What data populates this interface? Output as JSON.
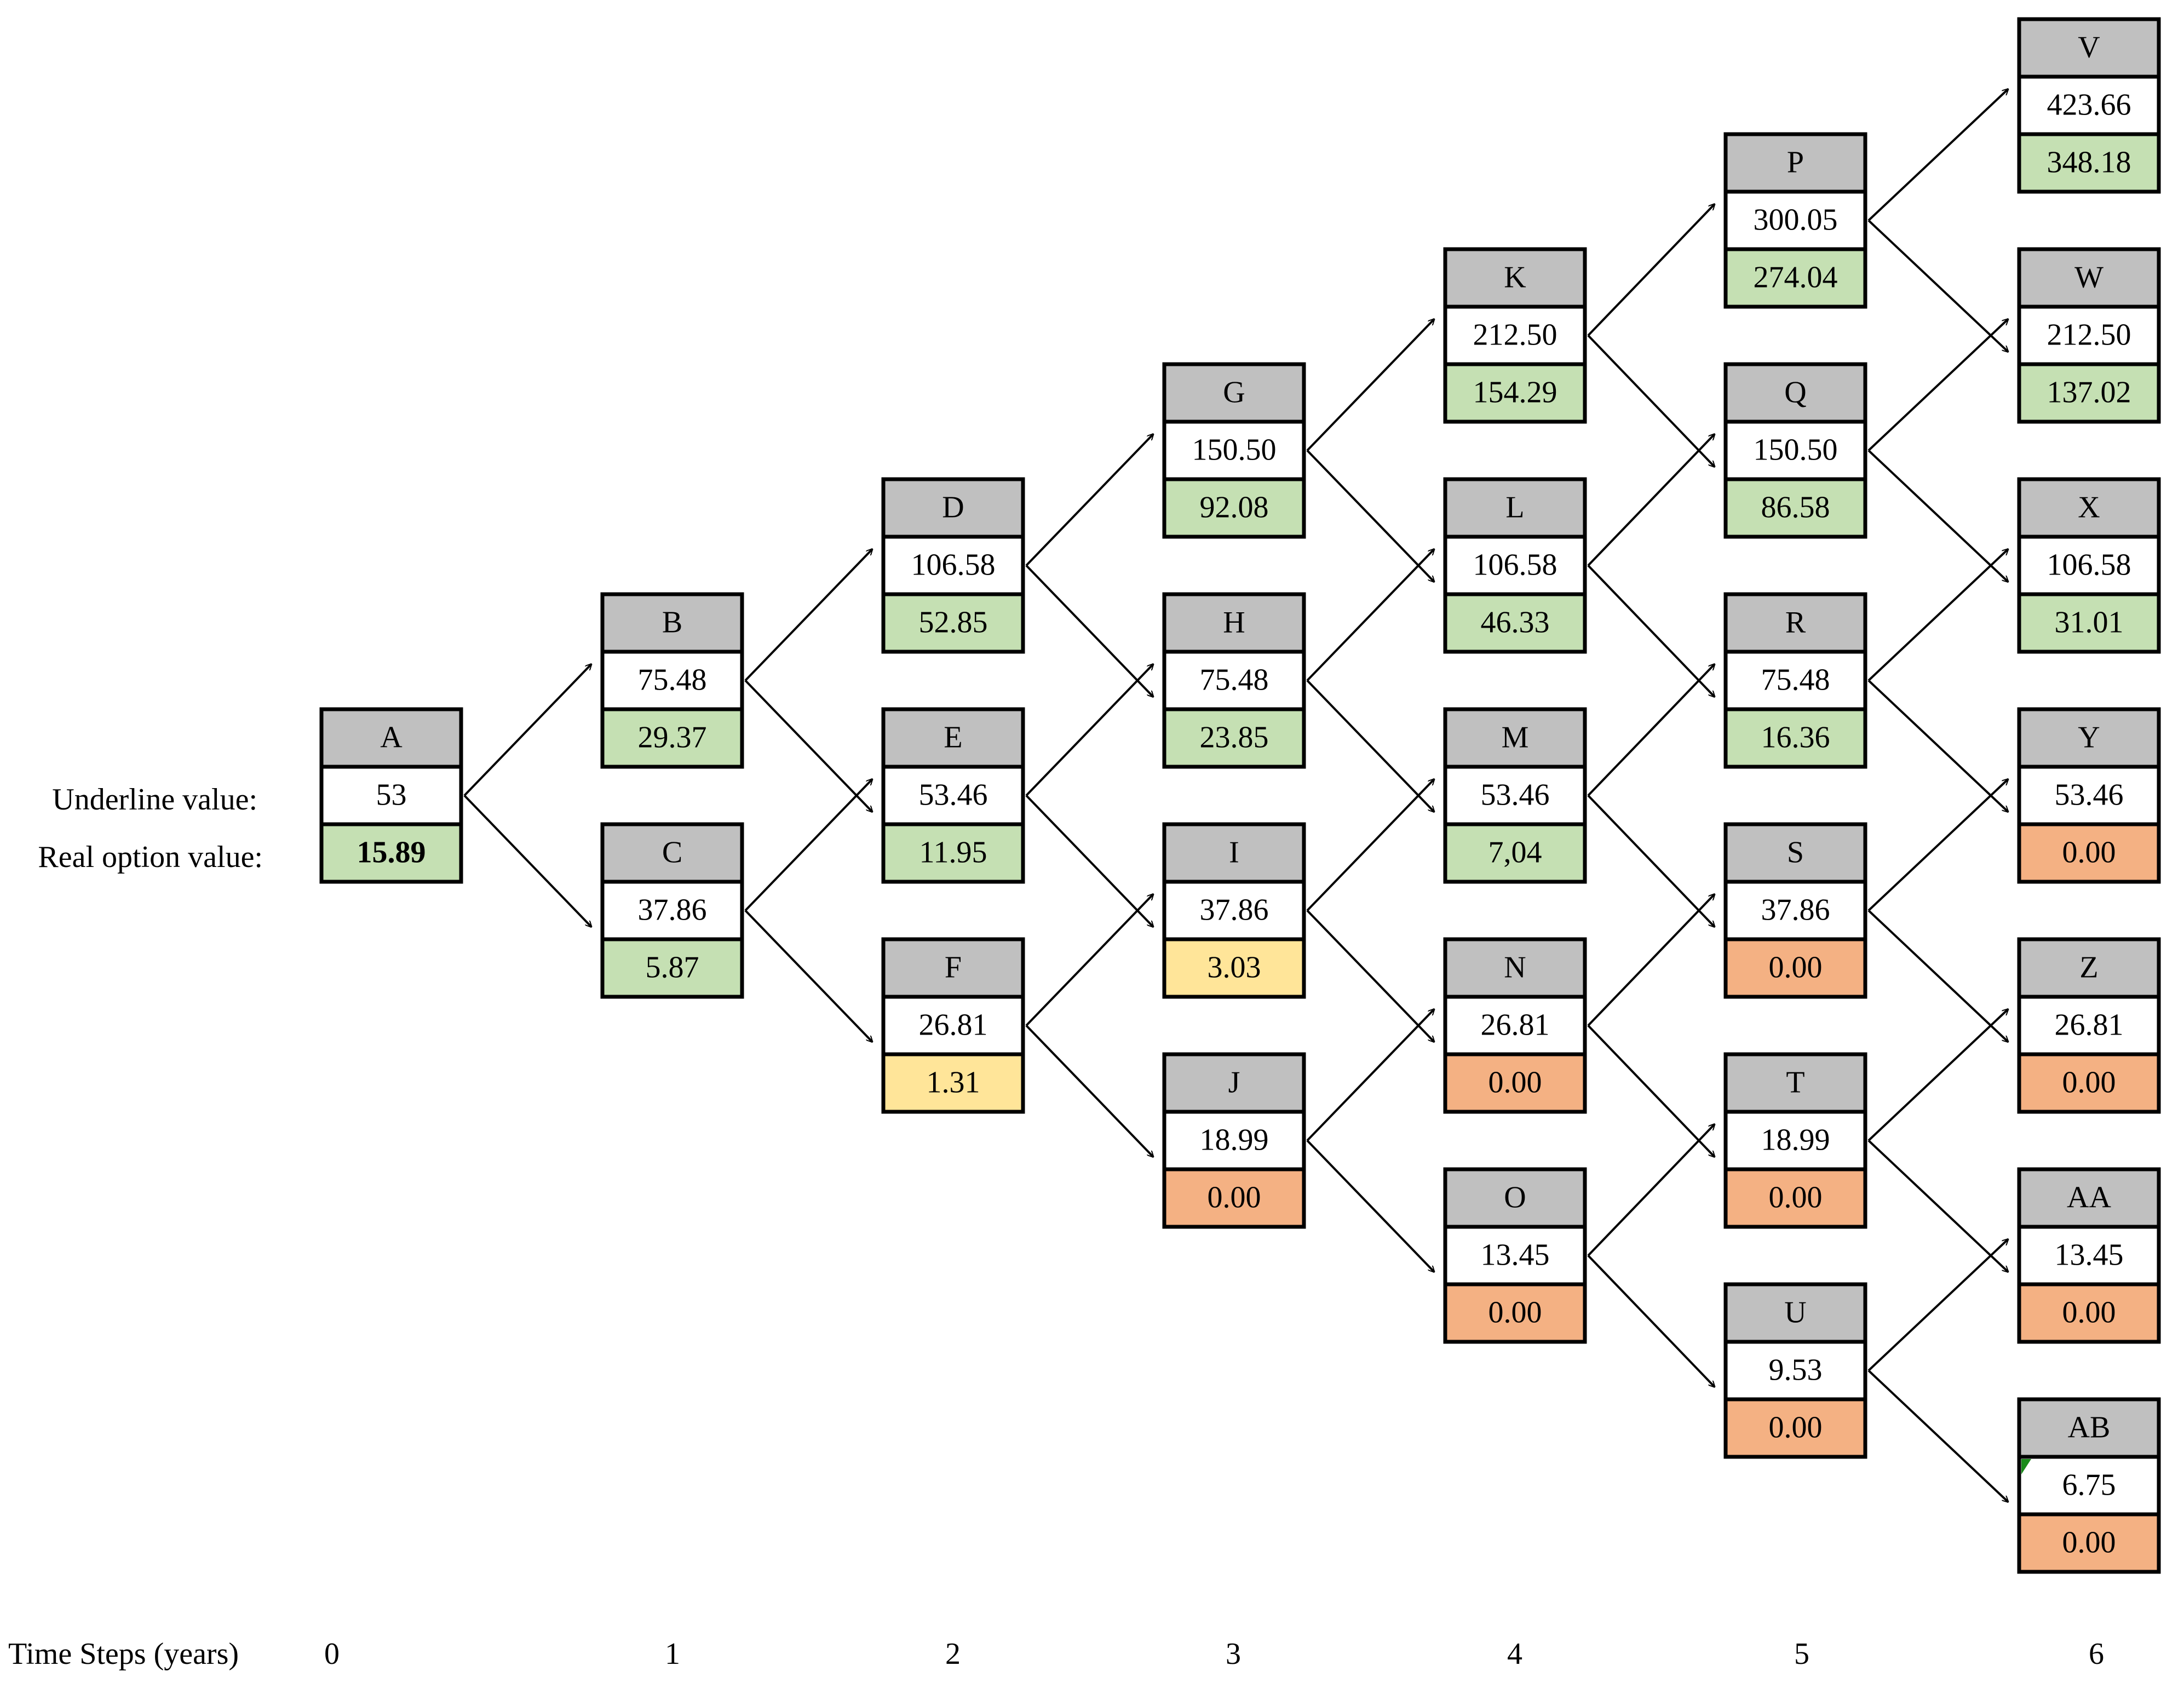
{
  "labels": {
    "underline": "Underline value:",
    "real_option": "Real option value:",
    "time_axis": "Time Steps (years)"
  },
  "steps": [
    "0",
    "1",
    "2",
    "3",
    "4",
    "5",
    "6"
  ],
  "colors": {
    "header": "#c0c0c0",
    "value": "#ffffff",
    "green": "#c5e0b3",
    "yellow": "#ffe599",
    "orange": "#f4b183",
    "corner_mark": "#1a8a1a"
  },
  "nodes": [
    {
      "id": "A",
      "name": "A",
      "value": "53",
      "option": "15.89",
      "color": "green",
      "step": 0,
      "pos": 0,
      "bold": true
    },
    {
      "id": "B",
      "name": "B",
      "value": "75.48",
      "option": "29.37",
      "color": "green",
      "step": 1,
      "pos": 0
    },
    {
      "id": "C",
      "name": "C",
      "value": "37.86",
      "option": "5.87",
      "color": "green",
      "step": 1,
      "pos": 1
    },
    {
      "id": "D",
      "name": "D",
      "value": "106.58",
      "option": "52.85",
      "color": "green",
      "step": 2,
      "pos": 0
    },
    {
      "id": "E",
      "name": "E",
      "value": "53.46",
      "option": "11.95",
      "color": "green",
      "step": 2,
      "pos": 1
    },
    {
      "id": "F",
      "name": "F",
      "value": "26.81",
      "option": "1.31",
      "color": "yellow",
      "step": 2,
      "pos": 2
    },
    {
      "id": "G",
      "name": "G",
      "value": "150.50",
      "option": "92.08",
      "color": "green",
      "step": 3,
      "pos": 0
    },
    {
      "id": "H",
      "name": "H",
      "value": "75.48",
      "option": "23.85",
      "color": "green",
      "step": 3,
      "pos": 1
    },
    {
      "id": "I",
      "name": "I",
      "value": "37.86",
      "option": "3.03",
      "color": "yellow",
      "step": 3,
      "pos": 2
    },
    {
      "id": "J",
      "name": "J",
      "value": "18.99",
      "option": "0.00",
      "color": "orange",
      "step": 3,
      "pos": 3
    },
    {
      "id": "K",
      "name": "K",
      "value": "212.50",
      "option": "154.29",
      "color": "green",
      "step": 4,
      "pos": 0
    },
    {
      "id": "L",
      "name": "L",
      "value": "106.58",
      "option": "46.33",
      "color": "green",
      "step": 4,
      "pos": 1
    },
    {
      "id": "M",
      "name": "M",
      "value": "53.46",
      "option": "7,04",
      "color": "green",
      "step": 4,
      "pos": 2
    },
    {
      "id": "N",
      "name": "N",
      "value": "26.81",
      "option": "0.00",
      "color": "orange",
      "step": 4,
      "pos": 3
    },
    {
      "id": "O",
      "name": "O",
      "value": "13.45",
      "option": "0.00",
      "color": "orange",
      "step": 4,
      "pos": 4
    },
    {
      "id": "P",
      "name": "P",
      "value": "300.05",
      "option": "274.04",
      "color": "green",
      "step": 5,
      "pos": 0
    },
    {
      "id": "Q",
      "name": "Q",
      "value": "150.50",
      "option": "86.58",
      "color": "green",
      "step": 5,
      "pos": 1
    },
    {
      "id": "R",
      "name": "R",
      "value": "75.48",
      "option": "16.36",
      "color": "green",
      "step": 5,
      "pos": 2
    },
    {
      "id": "S",
      "name": "S",
      "value": "37.86",
      "option": "0.00",
      "color": "orange",
      "step": 5,
      "pos": 3
    },
    {
      "id": "T",
      "name": "T",
      "value": "18.99",
      "option": "0.00",
      "color": "orange",
      "step": 5,
      "pos": 4
    },
    {
      "id": "U",
      "name": "U",
      "value": "9.53",
      "option": "0.00",
      "color": "orange",
      "step": 5,
      "pos": 5
    },
    {
      "id": "V",
      "name": "V",
      "value": "423.66",
      "option": "348.18",
      "color": "green",
      "step": 6,
      "pos": 0
    },
    {
      "id": "W",
      "name": "W",
      "value": "212.50",
      "option": "137.02",
      "color": "green",
      "step": 6,
      "pos": 1
    },
    {
      "id": "X",
      "name": "X",
      "value": "106.58",
      "option": "31.01",
      "color": "green",
      "step": 6,
      "pos": 2
    },
    {
      "id": "Y",
      "name": "Y",
      "value": "53.46",
      "option": "0.00",
      "color": "orange",
      "step": 6,
      "pos": 3
    },
    {
      "id": "Z",
      "name": "Z",
      "value": "26.81",
      "option": "0.00",
      "color": "orange",
      "step": 6,
      "pos": 4
    },
    {
      "id": "AA",
      "name": "AA",
      "value": "13.45",
      "option": "0.00",
      "color": "orange",
      "step": 6,
      "pos": 5
    },
    {
      "id": "AB",
      "name": "AB",
      "value": "6.75",
      "option": "0.00",
      "color": "orange",
      "step": 6,
      "pos": 6,
      "corner_mark": true
    }
  ]
}
